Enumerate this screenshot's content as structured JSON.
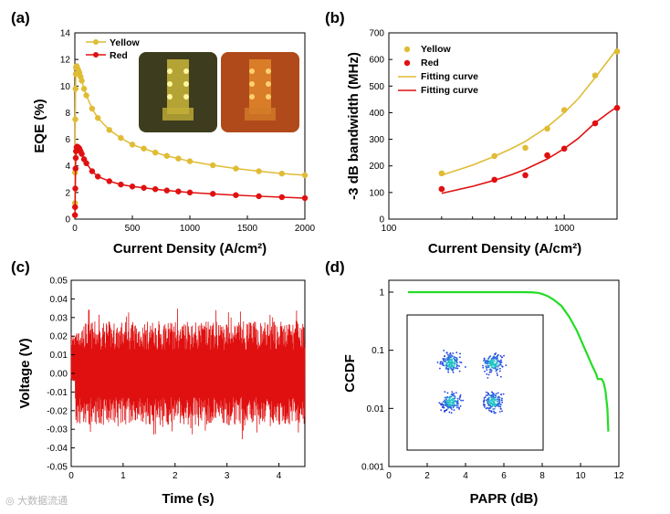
{
  "colors": {
    "yellow": "#e0bc35",
    "red": "#e01010",
    "green": "#22dd22",
    "dot": "#1e3ee0"
  },
  "watermark": "大数据流通",
  "chart_data": [
    {
      "panel": "(a)",
      "type": "line",
      "xlabel": "Current Density (A/cm²)",
      "ylabel": "EQE (%)",
      "xlim": [
        0,
        2000
      ],
      "ylim": [
        0,
        14
      ],
      "xticks": [
        0,
        500,
        1000,
        1500,
        2000
      ],
      "yticks": [
        0,
        2,
        4,
        6,
        8,
        10,
        12,
        14
      ],
      "series": [
        {
          "name": "Yellow",
          "color": "#e0bc35",
          "x": [
            1,
            2,
            4,
            6,
            8,
            10,
            15,
            20,
            30,
            40,
            50,
            60,
            80,
            100,
            150,
            200,
            300,
            400,
            500,
            600,
            700,
            800,
            900,
            1000,
            1200,
            1400,
            1600,
            1800,
            2000
          ],
          "y": [
            1.2,
            3.5,
            7.5,
            9.8,
            10.9,
            11.4,
            11.5,
            11.4,
            11.2,
            11.0,
            10.7,
            10.4,
            9.8,
            9.3,
            8.3,
            7.6,
            6.7,
            6.1,
            5.6,
            5.3,
            5.0,
            4.75,
            4.55,
            4.35,
            4.05,
            3.8,
            3.6,
            3.42,
            3.3
          ]
        },
        {
          "name": "Red",
          "color": "#e01010",
          "x": [
            1,
            2,
            4,
            6,
            8,
            10,
            15,
            20,
            30,
            40,
            50,
            60,
            80,
            100,
            150,
            200,
            300,
            400,
            500,
            600,
            700,
            800,
            900,
            1000,
            1200,
            1400,
            1600,
            1800,
            2000
          ],
          "y": [
            0.3,
            0.9,
            2.3,
            3.8,
            4.6,
            5.1,
            5.4,
            5.45,
            5.4,
            5.3,
            5.1,
            4.9,
            4.5,
            4.2,
            3.6,
            3.2,
            2.85,
            2.6,
            2.45,
            2.35,
            2.25,
            2.15,
            2.08,
            2.0,
            1.9,
            1.8,
            1.72,
            1.65,
            1.58
          ]
        }
      ]
    },
    {
      "panel": "(b)",
      "type": "scatter",
      "xscale": "log",
      "xlabel": "Current Density (A/cm²)",
      "ylabel": "-3 dB bandwidth (MHz)",
      "xlim": [
        100,
        2000
      ],
      "ylim": [
        0,
        700
      ],
      "xticks": [
        100,
        1000
      ],
      "yticks": [
        0,
        100,
        200,
        300,
        400,
        500,
        600,
        700
      ],
      "series": [
        {
          "name": "Yellow",
          "color": "#e0bc35",
          "x": [
            200,
            400,
            600,
            800,
            1000,
            1500,
            2000
          ],
          "y": [
            172,
            237,
            268,
            340,
            410,
            540,
            630
          ]
        },
        {
          "name": "Red",
          "color": "#e01010",
          "x": [
            200,
            400,
            600,
            800,
            1000,
            1500,
            2000
          ],
          "y": [
            113,
            148,
            165,
            240,
            265,
            360,
            418
          ]
        }
      ],
      "fits": [
        {
          "name": "Fitting curve",
          "color": "#e0bc35",
          "x": [
            200,
            300,
            400,
            500,
            600,
            800,
            1000,
            1200,
            1500,
            1800,
            2000
          ],
          "y": [
            165,
            203,
            236,
            265,
            292,
            346,
            400,
            452,
            532,
            600,
            640
          ]
        },
        {
          "name": "Fitting curve",
          "color": "#e01010",
          "x": [
            200,
            300,
            400,
            500,
            600,
            800,
            1000,
            1200,
            1500,
            1800,
            2000
          ],
          "y": [
            97,
            123,
            146,
            167,
            187,
            226,
            265,
            303,
            362,
            401,
            422
          ]
        }
      ]
    },
    {
      "panel": "(c)",
      "type": "line",
      "xlabel": "Time (s)",
      "ylabel": "Voltage (V)",
      "xlim": [
        0,
        4.5
      ],
      "ylim": [
        -0.05,
        0.05
      ],
      "xticks": [
        0,
        1,
        2,
        3,
        4
      ],
      "yticks": [
        -0.05,
        -0.04,
        -0.03,
        -0.02,
        -0.01,
        0.0,
        0.01,
        0.02,
        0.03,
        0.04,
        0.05
      ],
      "ytick_labels": [
        "-0.05",
        "-0.04",
        "-0.03",
        "-0.02",
        "-0.01",
        "0.00",
        "0.01",
        "0.02",
        "0.03",
        "0.04",
        "0.05"
      ],
      "series": [
        {
          "name": "Voltage",
          "color": "#e01010",
          "amplitude_typical": 0.028,
          "amplitude_peak": 0.036,
          "start_level": 0.022
        }
      ]
    },
    {
      "panel": "(d)",
      "type": "line",
      "yscale": "log",
      "xlabel": "PAPR (dB)",
      "ylabel": "CCDF",
      "xlim": [
        0,
        12
      ],
      "ylim": [
        0.001,
        1.6
      ],
      "xticks": [
        0,
        2,
        4,
        6,
        8,
        10,
        12
      ],
      "yticks": [
        1,
        0.1,
        0.01,
        0.001
      ],
      "ytick_labels": [
        "1",
        "0.1",
        "0.01",
        "0.001"
      ],
      "series": [
        {
          "name": "CCDF",
          "color": "#22dd22",
          "x": [
            1,
            2,
            3,
            4,
            5,
            6,
            7,
            7.5,
            7.8,
            8.0,
            8.3,
            8.6,
            9.0,
            9.4,
            9.8,
            10.2,
            10.6,
            10.8,
            10.9,
            11.1,
            11.2,
            11.3,
            11.4,
            11.45
          ],
          "y": [
            1,
            1,
            1,
            1,
            1,
            1,
            1,
            0.99,
            0.97,
            0.93,
            0.85,
            0.74,
            0.58,
            0.38,
            0.22,
            0.11,
            0.055,
            0.04,
            0.032,
            0.032,
            0.028,
            0.02,
            0.01,
            0.004
          ]
        }
      ],
      "inset": {
        "type": "scatter",
        "description": "constellation",
        "centers": [
          [
            -1,
            1
          ],
          [
            1,
            1
          ],
          [
            -1,
            -1
          ],
          [
            1,
            -1
          ]
        ]
      }
    }
  ]
}
